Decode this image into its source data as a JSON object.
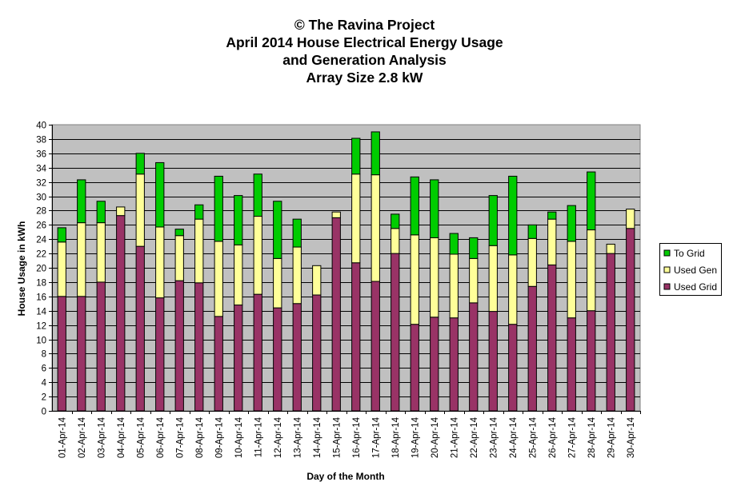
{
  "chart_data": {
    "type": "bar",
    "stacked": true,
    "title_lines": [
      "© The Ravina Project",
      "April 2014 House Electrical Energy Usage",
      "and Generation Analysis",
      "Array Size 2.8 kW"
    ],
    "xlabel": "Day of the Month",
    "ylabel": "House Usage in kWh",
    "ylim": [
      0,
      40
    ],
    "ytick_step": 2,
    "grid": true,
    "legend_position": "right",
    "colors": {
      "used_grid": "#993366",
      "used_gen": "#ffff99",
      "to_grid": "#00cc00",
      "plot_bg": "#c0c0c0"
    },
    "categories": [
      "01-Apr-14",
      "02-Apr-14",
      "03-Apr-14",
      "04-Apr-14",
      "05-Apr-14",
      "06-Apr-14",
      "07-Apr-14",
      "08-Apr-14",
      "09-Apr-14",
      "10-Apr-14",
      "11-Apr-14",
      "12-Apr-14",
      "13-Apr-14",
      "14-Apr-14",
      "15-Apr-14",
      "16-Apr-14",
      "17-Apr-14",
      "18-Apr-14",
      "19-Apr-14",
      "20-Apr-14",
      "21-Apr-14",
      "22-Apr-14",
      "23-Apr-14",
      "24-Apr-14",
      "25-Apr-14",
      "26-Apr-14",
      "27-Apr-14",
      "28-Apr-14",
      "29-Apr-14",
      "30-Apr-14"
    ],
    "series": [
      {
        "name": "Used Grid",
        "key": "used_grid",
        "values": [
          16.0,
          16.0,
          18.0,
          27.3,
          23.0,
          15.8,
          18.2,
          17.9,
          13.2,
          14.8,
          16.3,
          14.4,
          15.0,
          16.2,
          27.0,
          20.7,
          18.1,
          22.0,
          12.1,
          13.1,
          13.0,
          15.1,
          13.9,
          12.1,
          17.4,
          20.4,
          13.0,
          14.0,
          22.0,
          25.5
        ]
      },
      {
        "name": "Used Gen",
        "key": "used_gen",
        "values": [
          7.6,
          10.3,
          8.3,
          1.2,
          10.1,
          9.9,
          6.3,
          8.9,
          10.5,
          8.4,
          10.9,
          6.9,
          7.9,
          4.1,
          0.8,
          12.4,
          14.9,
          3.5,
          12.5,
          11.1,
          8.9,
          6.2,
          9.2,
          9.7,
          6.7,
          6.4,
          10.7,
          11.3,
          1.3,
          2.7
        ]
      },
      {
        "name": "To Grid",
        "key": "to_grid",
        "values": [
          2.0,
          6.0,
          3.0,
          0.0,
          2.9,
          9.0,
          0.9,
          2.0,
          9.1,
          6.9,
          5.9,
          8.0,
          3.9,
          0.0,
          0.0,
          5.0,
          6.0,
          2.0,
          8.1,
          8.1,
          2.9,
          2.9,
          7.0,
          11.0,
          1.9,
          1.0,
          5.0,
          8.1,
          0.0,
          0.0
        ]
      }
    ],
    "legend": [
      {
        "name": "To Grid",
        "key": "to_grid"
      },
      {
        "name": "Used Gen",
        "key": "used_gen"
      },
      {
        "name": "Used Grid",
        "key": "used_grid"
      }
    ]
  }
}
